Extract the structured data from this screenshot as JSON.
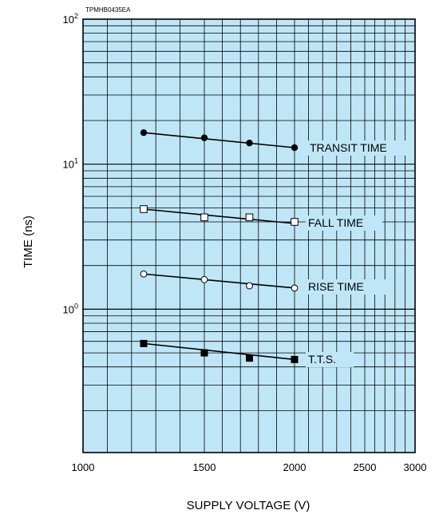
{
  "figure_code": "TPMHB0435EA",
  "colors": {
    "plot_background": "#bfe6f7",
    "grid": "#000000",
    "marker": "#000000"
  },
  "chart_data": {
    "type": "line",
    "title": "",
    "xlabel": "SUPPLY VOLTAGE (V)",
    "ylabel": "TIME (ns)",
    "xlim": [
      1000,
      3000
    ],
    "ylim": [
      0.1,
      100
    ],
    "yscale": "log",
    "grid": true,
    "x_tick_labels": [
      "1000",
      "1500",
      "2000",
      "2500",
      "3000"
    ],
    "y_tick_labels": [
      {
        "base": "10",
        "exp": "2"
      },
      {
        "base": "10",
        "exp": "1"
      },
      {
        "base": "10",
        "exp": "0"
      }
    ],
    "series": [
      {
        "name": "TRANSIT TIME",
        "marker": "filled-circle",
        "x": [
          1250,
          1500,
          1750,
          2000
        ],
        "y": [
          16.5,
          15.2,
          14.0,
          13.0
        ],
        "fit": [
          16.5,
          13.0
        ]
      },
      {
        "name": "FALL TIME",
        "marker": "open-square",
        "x": [
          1250,
          1500,
          1750,
          2000
        ],
        "y": [
          4.9,
          4.3,
          4.3,
          4.0
        ],
        "fit": [
          4.9,
          3.9
        ]
      },
      {
        "name": "RISE TIME",
        "marker": "open-circle",
        "x": [
          1250,
          1500,
          1750,
          2000
        ],
        "y": [
          1.75,
          1.6,
          1.45,
          1.4
        ],
        "fit": [
          1.75,
          1.4
        ]
      },
      {
        "name": "T.T.S.",
        "marker": "filled-square",
        "x": [
          1250,
          1500,
          1750,
          2000
        ],
        "y": [
          0.58,
          0.5,
          0.46,
          0.45
        ],
        "fit": [
          0.58,
          0.45
        ]
      }
    ]
  }
}
